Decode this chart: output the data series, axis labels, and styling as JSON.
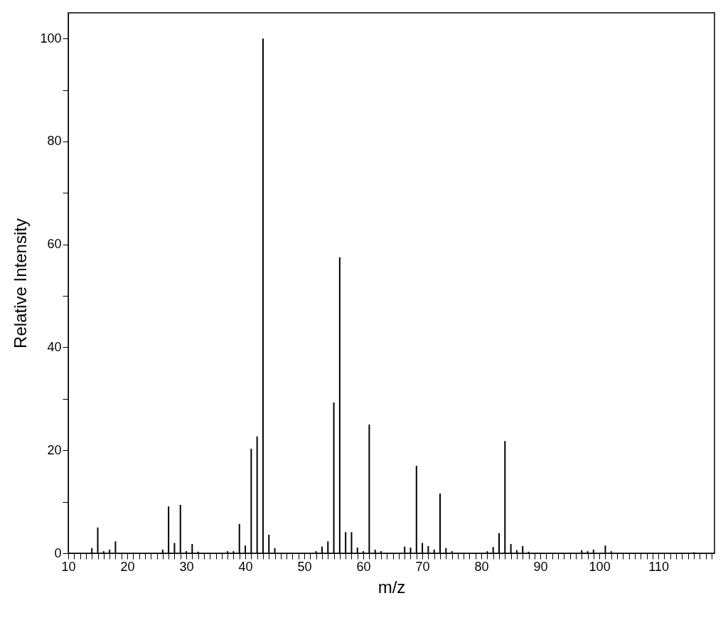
{
  "chart_data": {
    "type": "bar",
    "xlabel": "m/z",
    "ylabel": "Relative Intensity",
    "color": "#000000",
    "grid": false,
    "x": [
      14,
      15,
      16,
      17,
      18,
      26,
      27,
      28,
      29,
      30,
      31,
      32,
      37,
      38,
      39,
      40,
      41,
      42,
      43,
      44,
      45,
      52,
      53,
      54,
      55,
      56,
      57,
      58,
      59,
      60,
      61,
      62,
      63,
      67,
      68,
      69,
      70,
      71,
      72,
      73,
      74,
      75,
      81,
      82,
      83,
      84,
      85,
      86,
      87,
      88,
      97,
      98,
      99,
      101,
      102,
      116
    ],
    "values": [
      1.0,
      5.0,
      0.4,
      0.7,
      2.3,
      0.7,
      9.1,
      2.0,
      9.4,
      0.4,
      1.8,
      0.3,
      0.4,
      0.4,
      5.7,
      1.5,
      20.3,
      22.7,
      100,
      3.6,
      1.0,
      0.4,
      1.3,
      2.3,
      29.3,
      57.5,
      4.1,
      4.1,
      1.1,
      0.4,
      25.0,
      0.7,
      0.4,
      1.3,
      1.1,
      17.0,
      2.0,
      1.4,
      0.7,
      11.6,
      1.0,
      0.4,
      0.4,
      1.2,
      3.9,
      21.8,
      1.8,
      0.6,
      1.4,
      0.3,
      0.6,
      0.4,
      0.7,
      1.5,
      0.4,
      0.2
    ],
    "xlim": [
      10,
      119.5
    ],
    "xticks": [
      10,
      {
        "value": 11,
        "label": null
      },
      {
        "value": 12,
        "label": null
      },
      {
        "value": 13,
        "label": null
      },
      {
        "value": 14,
        "label": null
      },
      {
        "value": 15,
        "label": null
      },
      {
        "value": 16,
        "label": null
      },
      {
        "value": 17,
        "label": null
      },
      {
        "value": 18,
        "label": null
      },
      {
        "value": 19,
        "label": null
      },
      20,
      {
        "value": 21,
        "label": null
      },
      {
        "value": 22,
        "label": null
      },
      {
        "value": 23,
        "label": null
      },
      {
        "value": 24,
        "label": null
      },
      {
        "value": 25,
        "label": null
      },
      {
        "value": 26,
        "label": null
      },
      {
        "value": 27,
        "label": null
      },
      {
        "value": 28,
        "label": null
      },
      {
        "value": 29,
        "label": null
      },
      30,
      {
        "value": 31,
        "label": null
      },
      {
        "value": 32,
        "label": null
      },
      {
        "value": 33,
        "label": null
      },
      {
        "value": 34,
        "label": null
      },
      {
        "value": 35,
        "label": null
      },
      {
        "value": 36,
        "label": null
      },
      {
        "value": 37,
        "label": null
      },
      {
        "value": 38,
        "label": null
      },
      {
        "value": 39,
        "label": null
      },
      40,
      {
        "value": 41,
        "label": null
      },
      {
        "value": 42,
        "label": null
      },
      {
        "value": 43,
        "label": null
      },
      {
        "value": 44,
        "label": null
      },
      {
        "value": 45,
        "label": null
      },
      {
        "value": 46,
        "label": null
      },
      {
        "value": 47,
        "label": null
      },
      {
        "value": 48,
        "label": null
      },
      {
        "value": 49,
        "label": null
      },
      50,
      {
        "value": 51,
        "label": null
      },
      {
        "value": 52,
        "label": null
      },
      {
        "value": 53,
        "label": null
      },
      {
        "value": 54,
        "label": null
      },
      {
        "value": 55,
        "label": null
      },
      {
        "value": 56,
        "label": null
      },
      {
        "value": 57,
        "label": null
      },
      {
        "value": 58,
        "label": null
      },
      {
        "value": 59,
        "label": null
      },
      60,
      {
        "value": 61,
        "label": null
      },
      {
        "value": 62,
        "label": null
      },
      {
        "value": 63,
        "label": null
      },
      {
        "value": 64,
        "label": null
      },
      {
        "value": 65,
        "label": null
      },
      {
        "value": 66,
        "label": null
      },
      {
        "value": 67,
        "label": null
      },
      {
        "value": 68,
        "label": null
      },
      {
        "value": 69,
        "label": null
      },
      70,
      {
        "value": 71,
        "label": null
      },
      {
        "value": 72,
        "label": null
      },
      {
        "value": 73,
        "label": null
      },
      {
        "value": 74,
        "label": null
      },
      {
        "value": 75,
        "label": null
      },
      {
        "value": 76,
        "label": null
      },
      {
        "value": 77,
        "label": null
      },
      {
        "value": 78,
        "label": null
      },
      {
        "value": 79,
        "label": null
      },
      80,
      {
        "value": 81,
        "label": null
      },
      {
        "value": 82,
        "label": null
      },
      {
        "value": 83,
        "label": null
      },
      {
        "value": 84,
        "label": null
      },
      {
        "value": 85,
        "label": null
      },
      {
        "value": 86,
        "label": null
      },
      {
        "value": 87,
        "label": null
      },
      {
        "value": 88,
        "label": null
      },
      {
        "value": 89,
        "label": null
      },
      90,
      {
        "value": 91,
        "label": null
      },
      {
        "value": 92,
        "label": null
      },
      {
        "value": 93,
        "label": null
      },
      {
        "value": 94,
        "label": null
      },
      {
        "value": 95,
        "label": null
      },
      {
        "value": 96,
        "label": null
      },
      {
        "value": 97,
        "label": null
      },
      {
        "value": 98,
        "label": null
      },
      {
        "value": 99,
        "label": null
      },
      100,
      {
        "value": 101,
        "label": null
      },
      {
        "value": 102,
        "label": null
      },
      {
        "value": 103,
        "label": null
      },
      {
        "value": 104,
        "label": null
      },
      {
        "value": 105,
        "label": null
      },
      {
        "value": 106,
        "label": null
      },
      {
        "value": 107,
        "label": null
      },
      {
        "value": 108,
        "label": null
      },
      {
        "value": 109,
        "label": null
      },
      110,
      {
        "value": 111,
        "label": null
      },
      {
        "value": 112,
        "label": null
      },
      {
        "value": 113,
        "label": null
      },
      {
        "value": 114,
        "label": null
      },
      {
        "value": 115,
        "label": null
      },
      {
        "value": 116,
        "label": null
      },
      {
        "value": 117,
        "label": null
      },
      {
        "value": 118,
        "label": null
      },
      {
        "value": 119,
        "label": null
      }
    ],
    "ylim": [
      0,
      105
    ],
    "yticks": [
      0,
      {
        "value": 10,
        "label": null
      },
      20,
      {
        "value": 30,
        "label": null
      },
      40,
      {
        "value": 50,
        "label": null
      },
      60,
      {
        "value": 70,
        "label": null
      },
      80,
      {
        "value": 90,
        "label": null
      },
      100
    ]
  }
}
